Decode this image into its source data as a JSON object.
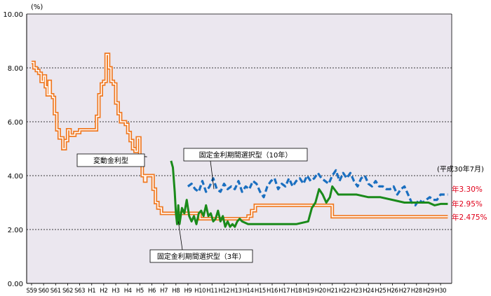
{
  "chart_data": {
    "type": "line",
    "title": "",
    "xlabel": "",
    "ylabel": "",
    "unit_label": "(%)",
    "ylim": [
      0,
      10
    ],
    "yticks": [
      "0.00",
      "2.00",
      "4.00",
      "6.00",
      "8.00",
      "10.00"
    ],
    "grid": true,
    "background": "#ebe7ef",
    "x_tick_labels": [
      "S59",
      "S60",
      "S61",
      "S62",
      "S63",
      "H1",
      "H2",
      "H3",
      "H4",
      "H5",
      "H6",
      "H7",
      "H8",
      "H9",
      "H10",
      "H11",
      "H12",
      "H13",
      "H14",
      "H15",
      "H16",
      "H17",
      "H18",
      "H19",
      "H20",
      "H21",
      "H22",
      "H23",
      "H24",
      "H25",
      "H26",
      "H27",
      "H28",
      "H29",
      "H30"
    ],
    "note": "(平成30年7月)",
    "series": [
      {
        "name": "変動金利型",
        "color": "#f07820",
        "style": "double-orange",
        "x": [
          0,
          0.2,
          0.4,
          0.6,
          0.8,
          1.0,
          1.15,
          1.3,
          1.45,
          1.55,
          1.75,
          1.9,
          2.1,
          2.3,
          2.6,
          2.8,
          3.0,
          3.2,
          3.6,
          4.0,
          4.5,
          5.0,
          5.4,
          5.6,
          5.8,
          6.0,
          6.2,
          6.4,
          6.6,
          6.8,
          7.0,
          7.2,
          7.4,
          7.6,
          7.8,
          8.0,
          8.2,
          8.4,
          8.6,
          8.8,
          9.0,
          9.2,
          9.4,
          9.5,
          9.7,
          9.9,
          10.1,
          10.3,
          10.5,
          10.8,
          11.0,
          12.0,
          13.0,
          14.0,
          15.0,
          16.0,
          17.0,
          17.5,
          18.0,
          18.3,
          18.6,
          19.0,
          20.0,
          22.0,
          25.0,
          28.0,
          31.0,
          34.0,
          34.6
        ],
        "y": [
          8.2,
          8.0,
          7.9,
          7.8,
          7.5,
          7.7,
          7.3,
          7.0,
          7.5,
          7.0,
          6.9,
          6.3,
          5.7,
          5.4,
          5.0,
          5.3,
          5.7,
          5.5,
          5.6,
          5.7,
          5.7,
          5.7,
          6.2,
          7.0,
          7.4,
          7.5,
          8.5,
          8.0,
          7.5,
          7.4,
          6.7,
          6.3,
          6.0,
          6.0,
          5.9,
          5.6,
          5.3,
          5.0,
          4.9,
          5.4,
          4.5,
          4.0,
          3.8,
          4.0,
          4.0,
          4.0,
          3.5,
          3.0,
          2.8,
          2.6,
          2.6,
          2.6,
          2.6,
          2.4,
          2.4,
          2.4,
          2.4,
          2.4,
          2.5,
          2.7,
          2.9,
          2.9,
          2.9,
          2.9,
          2.475,
          2.475,
          2.475,
          2.475,
          2.475
        ]
      },
      {
        "name": "固定金利期間選択型（10年）",
        "color": "#1a6fc0",
        "style": "dashed-blue",
        "x": [
          13.0,
          13.3,
          13.6,
          13.9,
          14.2,
          14.5,
          14.8,
          15.1,
          15.4,
          15.7,
          16.0,
          16.3,
          16.6,
          16.9,
          17.2,
          17.5,
          17.8,
          18.1,
          18.4,
          18.7,
          19.0,
          19.3,
          19.6,
          19.9,
          20.2,
          20.5,
          20.8,
          21.1,
          21.4,
          21.7,
          22.0,
          22.3,
          22.6,
          22.9,
          23.2,
          23.5,
          23.8,
          24.1,
          24.4,
          24.7,
          25.0,
          25.3,
          25.6,
          25.9,
          26.2,
          26.5,
          26.8,
          27.1,
          27.4,
          27.7,
          28.0,
          28.3,
          28.6,
          28.9,
          29.2,
          29.5,
          29.8,
          30.1,
          30.4,
          30.7,
          31.0,
          31.3,
          31.6,
          31.9,
          32.2,
          32.5,
          32.8,
          33.1,
          33.4,
          33.7,
          34.0,
          34.3,
          34.6
        ],
        "y": [
          3.6,
          3.7,
          3.5,
          3.4,
          3.8,
          3.4,
          3.6,
          3.9,
          3.5,
          3.4,
          3.7,
          3.5,
          3.6,
          3.5,
          3.8,
          3.4,
          3.6,
          3.5,
          3.8,
          3.7,
          3.4,
          3.2,
          3.6,
          3.8,
          3.9,
          3.5,
          3.7,
          3.6,
          3.9,
          3.6,
          3.8,
          3.9,
          3.7,
          4.0,
          3.8,
          3.9,
          4.1,
          3.9,
          3.8,
          3.7,
          4.0,
          4.2,
          3.8,
          4.1,
          3.9,
          4.1,
          3.8,
          3.6,
          3.9,
          4.0,
          3.7,
          3.6,
          3.8,
          3.6,
          3.6,
          3.5,
          3.5,
          3.6,
          3.3,
          3.5,
          3.6,
          3.3,
          3.0,
          2.9,
          3.1,
          3.0,
          3.1,
          3.2,
          3.1,
          3.1,
          3.3,
          3.3,
          3.3
        ]
      },
      {
        "name": "固定金利期間選択型（3年）",
        "color": "#1a8a1a",
        "style": "solid-green",
        "x": [
          11.6,
          11.75,
          11.9,
          12.0,
          12.1,
          12.2,
          12.3,
          12.5,
          12.7,
          12.9,
          13.1,
          13.3,
          13.5,
          13.7,
          13.9,
          14.1,
          14.3,
          14.5,
          14.7,
          14.9,
          15.1,
          15.3,
          15.5,
          15.7,
          15.9,
          16.1,
          16.3,
          16.5,
          16.7,
          16.9,
          17.1,
          17.3,
          17.5,
          18.0,
          19.0,
          20.0,
          21.0,
          22.0,
          23.0,
          23.3,
          23.6,
          23.9,
          24.2,
          24.5,
          24.8,
          25.0,
          25.5,
          26.0,
          27.0,
          28.0,
          29.0,
          30.0,
          31.0,
          32.0,
          32.5,
          33.0,
          33.5,
          34.0,
          34.6
        ],
        "y": [
          4.55,
          4.3,
          3.4,
          2.6,
          2.2,
          2.9,
          2.2,
          2.8,
          2.6,
          3.1,
          2.5,
          2.3,
          2.5,
          2.2,
          2.6,
          2.7,
          2.5,
          2.9,
          2.5,
          2.6,
          2.3,
          2.4,
          2.7,
          2.3,
          2.5,
          2.1,
          2.3,
          2.1,
          2.2,
          2.1,
          2.3,
          2.4,
          2.3,
          2.2,
          2.2,
          2.2,
          2.2,
          2.2,
          2.3,
          2.8,
          3.0,
          3.5,
          3.3,
          3.0,
          3.2,
          3.6,
          3.3,
          3.3,
          3.3,
          3.2,
          3.2,
          3.1,
          3.0,
          3.0,
          3.0,
          3.0,
          2.9,
          2.95,
          2.95
        ]
      }
    ],
    "annotations": [
      {
        "text": "変動金利型",
        "series": 0
      },
      {
        "text": "固定金利期間選択型（10年）",
        "series": 1
      },
      {
        "text": "固定金利期間選択型（3年）",
        "series": 2
      }
    ],
    "end_labels": [
      {
        "text": "年3.30%",
        "value": 3.3
      },
      {
        "text": "年2.95%",
        "value": 2.95
      },
      {
        "text": "年2.475%",
        "value": 2.475
      }
    ],
    "end_label_color": "#e0001a"
  }
}
